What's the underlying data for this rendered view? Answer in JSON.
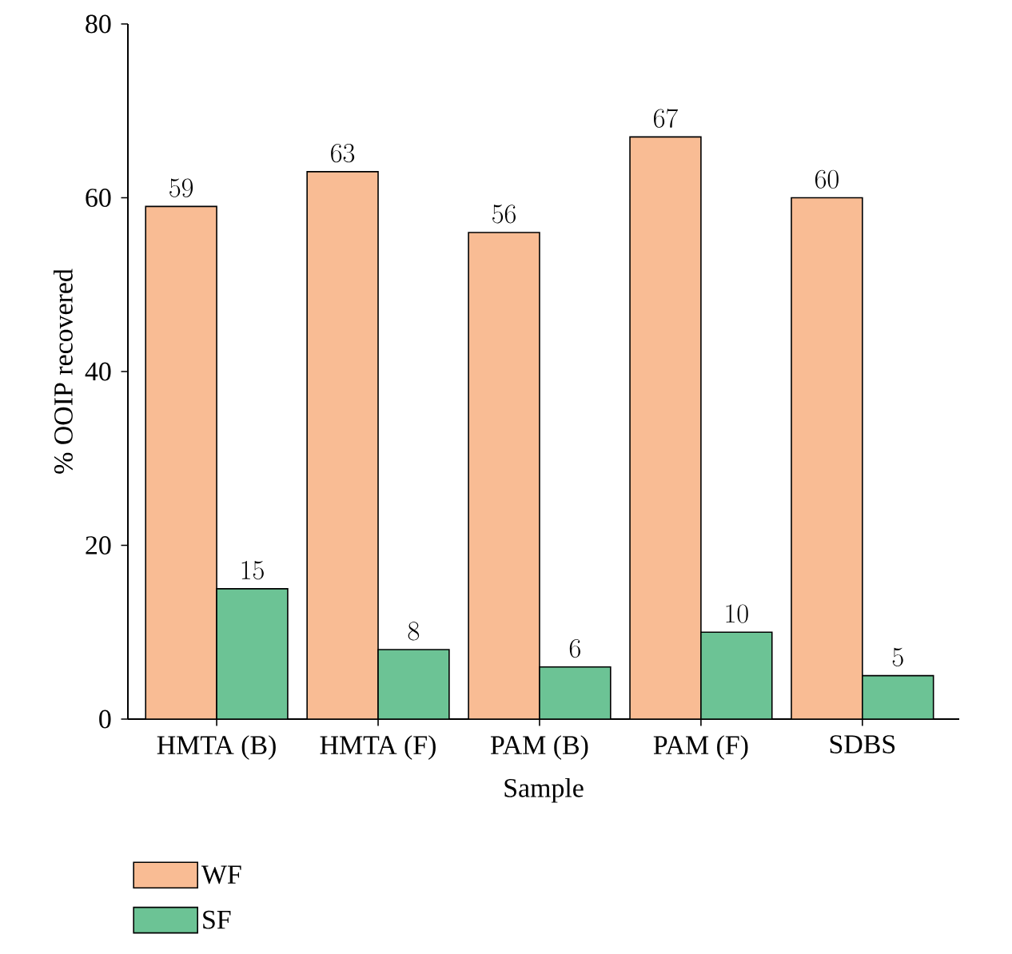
{
  "chart_data": {
    "type": "bar",
    "xlabel": "Sample",
    "ylabel": "% OOIP recovered",
    "categories": [
      "HMTA (B)",
      "HMTA (F)",
      "PAM (B)",
      "PAM (F)",
      "SDBS"
    ],
    "series": [
      {
        "name": "WF",
        "color": "#f9bc94",
        "values": [
          59,
          63,
          56,
          67,
          60
        ]
      },
      {
        "name": "SF",
        "color": "#6cc395",
        "values": [
          15,
          8,
          6,
          10,
          5
        ]
      }
    ],
    "ylim": [
      0,
      80
    ],
    "yticks": [
      0,
      20,
      40,
      60,
      80
    ],
    "data_labels": true,
    "legend": "bottom",
    "grid": false
  }
}
